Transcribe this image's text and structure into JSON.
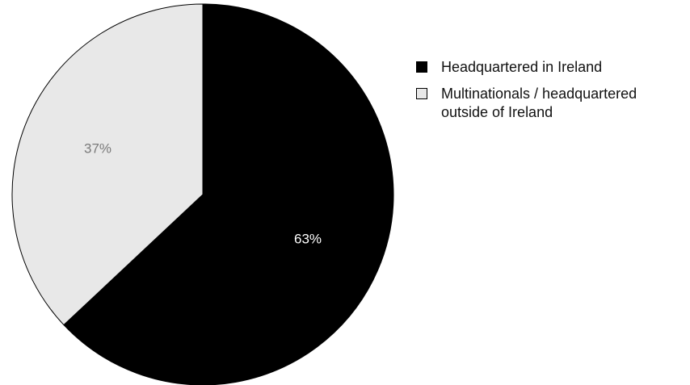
{
  "chart_data": {
    "type": "pie",
    "title": "",
    "start_angle_deg": 0,
    "direction": "clockwise",
    "border_color": "#000000",
    "slices": [
      {
        "label": "Headquartered in Ireland",
        "value": 63,
        "display": "63%",
        "color": "#000000",
        "label_color": "#ffffff"
      },
      {
        "label": "Multinationals / headquartered outside of Ireland",
        "value": 37,
        "display": "37%",
        "color": "#e8e8e8",
        "label_color": "#7a7a7a"
      }
    ],
    "legend": {
      "placement": "right",
      "items": [
        {
          "label": "Headquartered in Ireland",
          "color": "#000000"
        },
        {
          "label": "Multinationals / headquartered outside of Ireland",
          "color": "#e8e8e8"
        }
      ]
    }
  }
}
